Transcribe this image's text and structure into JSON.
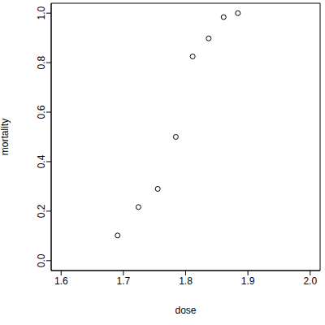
{
  "chart_data": {
    "type": "scatter",
    "x_label": "dose",
    "y_label": "mortality",
    "x": [
      1.6907,
      1.7242,
      1.7552,
      1.7842,
      1.8113,
      1.8369,
      1.861,
      1.8839
    ],
    "values": [
      0.1017,
      0.2167,
      0.29,
      0.5,
      0.825,
      0.898,
      0.984,
      1.0
    ],
    "color": "#000000",
    "marker": "circle",
    "xlim": [
      1.584,
      2.016
    ],
    "ylim": [
      -0.04,
      1.04
    ],
    "xticks": [
      1.6,
      1.7,
      1.8,
      1.9,
      {
        "value": 2.0,
        "label": "2.0"
      }
    ],
    "yticks": [
      {
        "value": 0.0,
        "label": "0.0"
      },
      0.2,
      0.4,
      0.6,
      0.8,
      {
        "value": 1.0,
        "label": "1.0"
      }
    ],
    "grid": false
  }
}
